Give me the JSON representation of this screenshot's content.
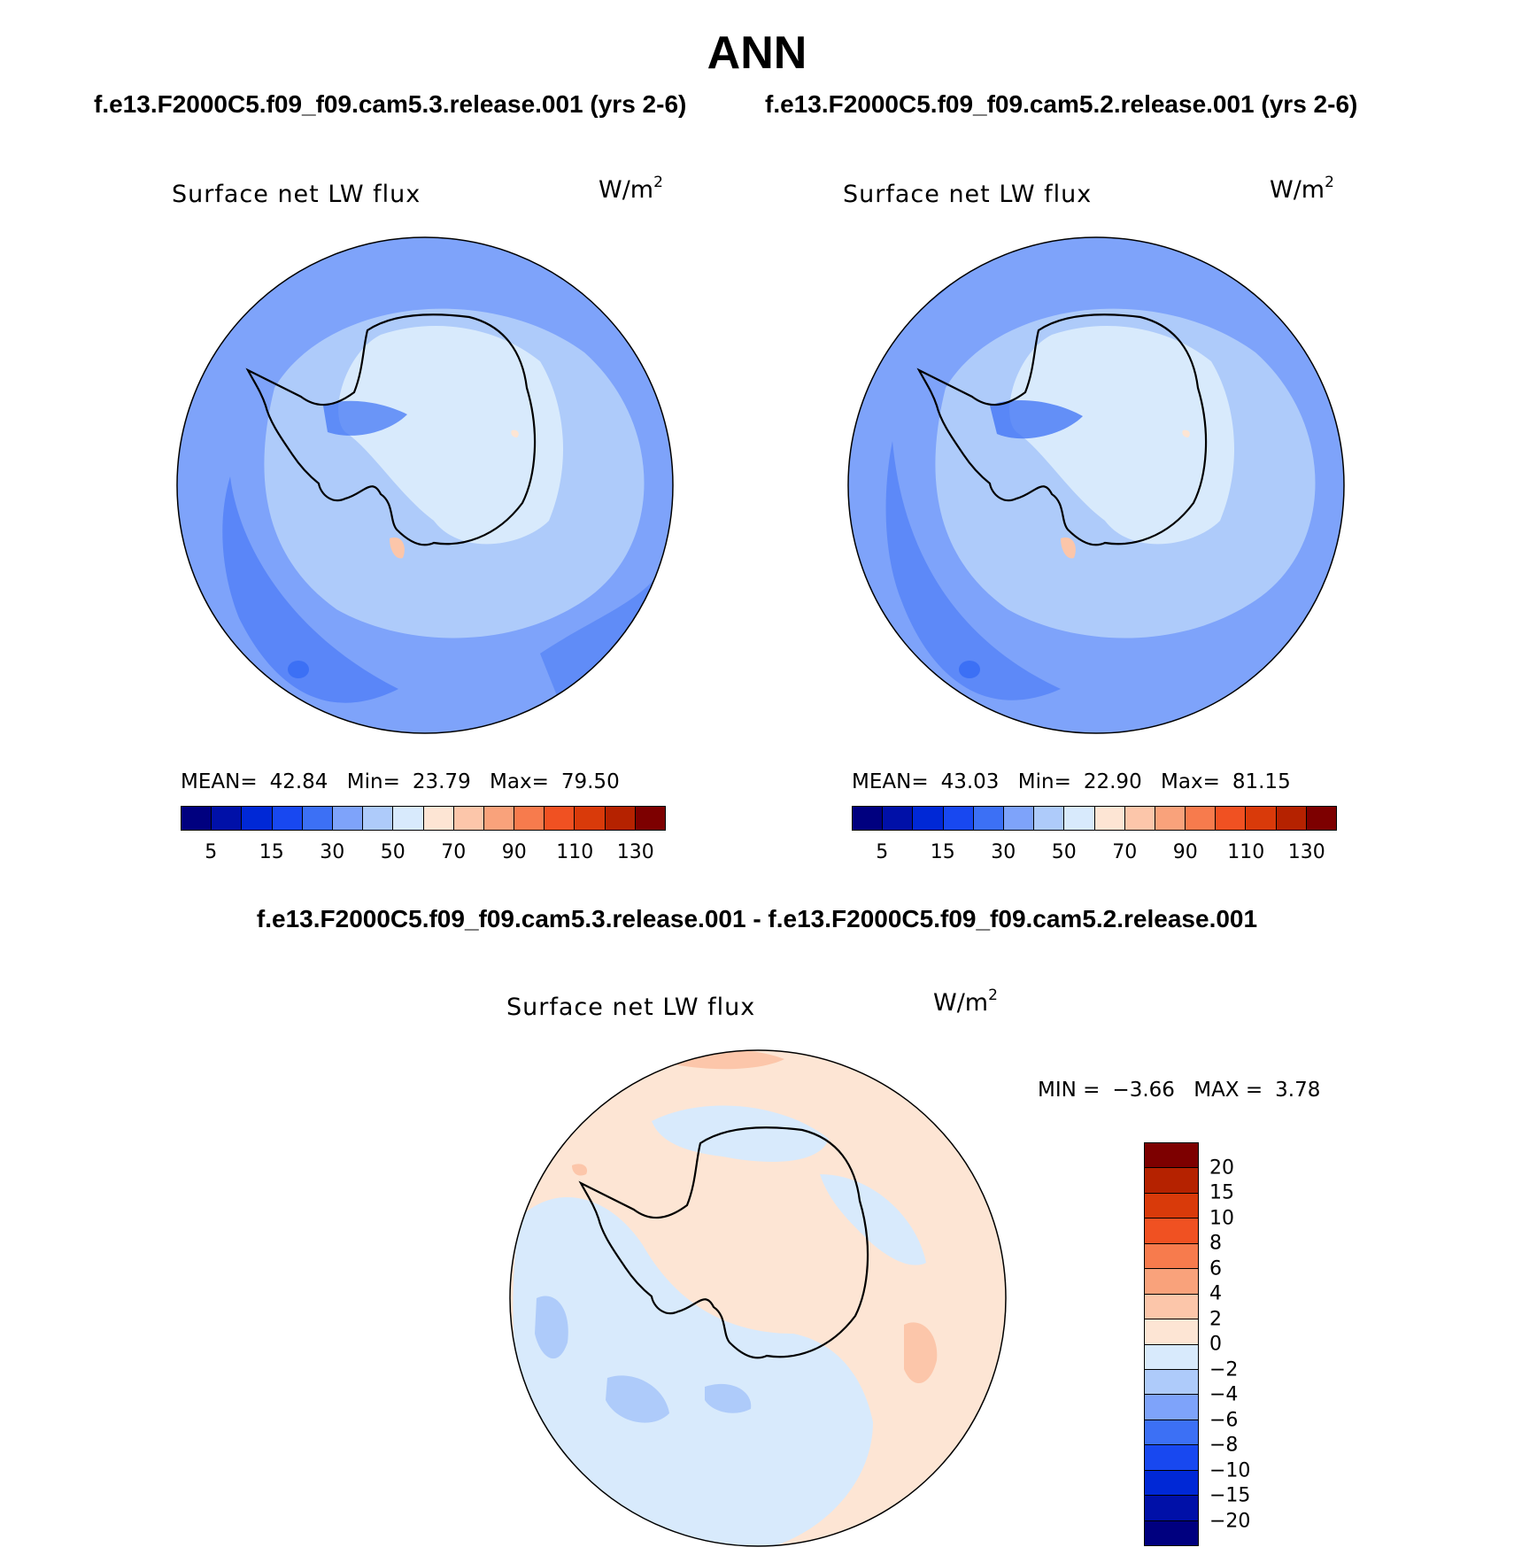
{
  "figure": {
    "title": "ANN",
    "case1_title": "f.e13.F2000C5.f09_f09.cam5.3.release.001 (yrs 2-6)",
    "case2_title": "f.e13.F2000C5.f09_f09.cam5.2.release.001 (yrs 2-6)",
    "diff_title": "f.e13.F2000C5.f09_f09.cam5.3.release.001 - f.e13.F2000C5.f09_f09.cam5.2.release.001"
  },
  "chart_data": [
    {
      "type": "heatmap",
      "projection": "south-polar-stereographic",
      "title": "Surface net LW flux",
      "units": "W/m",
      "units_superscript": "2",
      "stats": {
        "mean_label": "MEAN=",
        "mean": "42.84",
        "min_label": "Min=",
        "min": "23.79",
        "max_label": "Max=",
        "max": "79.50"
      },
      "colorbar": {
        "orientation": "horizontal",
        "levels": [
          5,
          10,
          15,
          20,
          30,
          40,
          50,
          60,
          70,
          80,
          90,
          100,
          110,
          120,
          130
        ],
        "tick_labels": [
          "5",
          "15",
          "30",
          "50",
          "70",
          "90",
          "110",
          "130"
        ],
        "colors": [
          "#00007f",
          "#0010a8",
          "#0028d6",
          "#1848f0",
          "#3c70f5",
          "#7ea3fa",
          "#aecbfa",
          "#d8eafc",
          "#fde5d4",
          "#fcc6aa",
          "#f9a27b",
          "#f77b4d",
          "#f05122",
          "#d93a0a",
          "#b52200",
          "#7d0000"
        ]
      }
    },
    {
      "type": "heatmap",
      "projection": "south-polar-stereographic",
      "title": "Surface net LW flux",
      "units": "W/m",
      "units_superscript": "2",
      "stats": {
        "mean_label": "MEAN=",
        "mean": "43.03",
        "min_label": "Min=",
        "min": "22.90",
        "max_label": "Max=",
        "max": "81.15"
      },
      "colorbar": {
        "orientation": "horizontal",
        "levels": [
          5,
          10,
          15,
          20,
          30,
          40,
          50,
          60,
          70,
          80,
          90,
          100,
          110,
          120,
          130
        ],
        "tick_labels": [
          "5",
          "15",
          "30",
          "50",
          "70",
          "90",
          "110",
          "130"
        ],
        "colors": [
          "#00007f",
          "#0010a8",
          "#0028d6",
          "#1848f0",
          "#3c70f5",
          "#7ea3fa",
          "#aecbfa",
          "#d8eafc",
          "#fde5d4",
          "#fcc6aa",
          "#f9a27b",
          "#f77b4d",
          "#f05122",
          "#d93a0a",
          "#b52200",
          "#7d0000"
        ]
      }
    },
    {
      "type": "heatmap",
      "projection": "south-polar-stereographic",
      "title": "Surface net LW flux",
      "units": "W/m",
      "units_superscript": "2",
      "stats": {
        "min_label": "MIN =",
        "min": "−3.66",
        "max_label": "MAX =",
        "max": "3.78"
      },
      "colorbar": {
        "orientation": "vertical",
        "tick_labels": [
          "20",
          "15",
          "10",
          "8",
          "6",
          "4",
          "2",
          "0",
          "−2",
          "−4",
          "−6",
          "−8",
          "−10",
          "−15",
          "−20"
        ],
        "colors": [
          "#7d0000",
          "#b52200",
          "#d93a0a",
          "#f05122",
          "#f77b4d",
          "#f9a27b",
          "#fcc6aa",
          "#fde5d4",
          "#d8eafc",
          "#aecbfa",
          "#7ea3fa",
          "#3c70f5",
          "#1848f0",
          "#0028d6",
          "#0010a8",
          "#00007f"
        ]
      }
    }
  ]
}
